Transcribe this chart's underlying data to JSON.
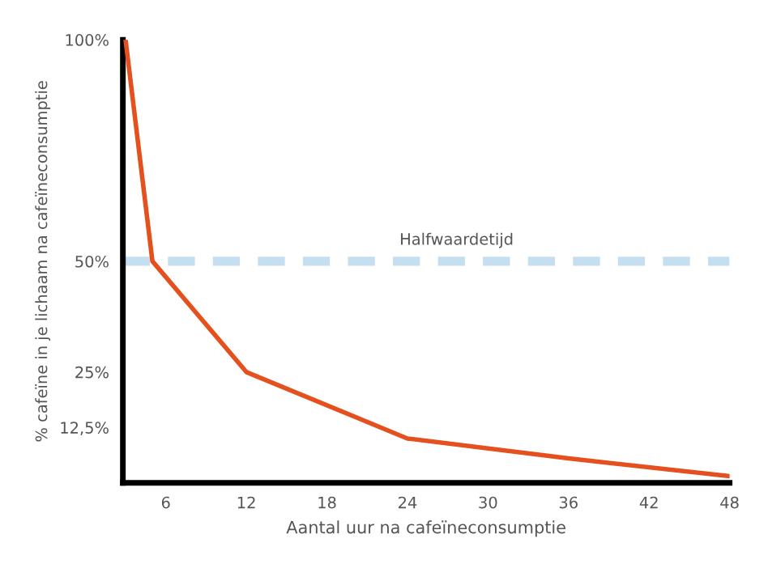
{
  "chart_data": {
    "type": "line",
    "xlabel": "Aantal uur na cafeïneconsumptie",
    "ylabel": "% cafeïne in je lichaam na cafeïneconsumptie",
    "x": [
      3,
      5,
      12,
      24,
      36,
      48
    ],
    "series": [
      {
        "color": "#e4501e",
        "values": [
          100,
          50,
          25,
          10,
          5.5,
          1.5
        ]
      }
    ],
    "xlim": [
      2.8,
      48
    ],
    "xticks": [
      6,
      12,
      18,
      24,
      30,
      36,
      42,
      48
    ],
    "ylim": [
      0,
      100
    ],
    "yticks": [
      {
        "value": 12.5,
        "label": "12,5%"
      },
      {
        "value": 25,
        "label": "25%"
      },
      {
        "value": 50,
        "label": "50%"
      },
      {
        "value": 100,
        "label": "100%"
      }
    ],
    "ref_lines": [
      {
        "axis": "y",
        "value": 50,
        "label": "Halfwaardetijd",
        "color": "#c6dff0",
        "line_style": "dashed"
      }
    ],
    "grid": false,
    "legend": false,
    "marker": "none",
    "line_style": "solid"
  }
}
